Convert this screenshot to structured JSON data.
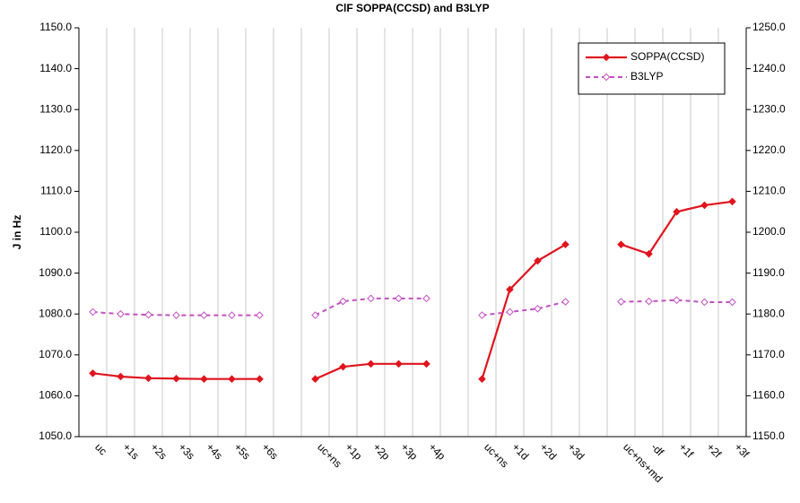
{
  "chart_data": {
    "type": "line",
    "title": "ClF SOPPA(CCSD) and B3LYP",
    "ylabel": "J in Hz",
    "categories": [
      "uc",
      "+1s",
      "+2s",
      "+3s",
      "+4s",
      "+5s",
      "+6s",
      null,
      "uc+ns",
      "+1p",
      "+2p",
      "+3p",
      "+4p",
      null,
      "uc+ns",
      "+1d",
      "+2d",
      "+3d",
      null,
      "uc+ns+md",
      "-df",
      "+1f",
      "+2f",
      "+3f"
    ],
    "series": [
      {
        "name": "SOPPA(CCSD)",
        "color": "#e0141e",
        "axis": "y",
        "values": [
          1065.5,
          1064.7,
          1064.3,
          1064.2,
          1064.1,
          1064.1,
          1064.1,
          null,
          1064.1,
          1067.1,
          1067.8,
          1067.8,
          1067.8,
          null,
          1064.1,
          1086.0,
          1093.0,
          1097.0,
          null,
          1097.0,
          1094.7,
          1105.0,
          1106.6,
          1107.5
        ]
      },
      {
        "name": "B3LYP",
        "color": "#c050c0",
        "axis": "y2",
        "values": [
          1180.5,
          1180.0,
          1179.8,
          1179.7,
          1179.7,
          1179.7,
          1179.7,
          null,
          1179.7,
          1183.1,
          1183.8,
          1183.8,
          1183.8,
          null,
          1179.7,
          1180.5,
          1181.3,
          1183.0,
          null,
          1183.0,
          1183.1,
          1183.4,
          1182.9,
          1182.9
        ]
      }
    ],
    "ylim": [
      1050,
      1150
    ],
    "yticks": [
      {
        "value": 1050,
        "label": "1050.0"
      },
      {
        "value": 1060,
        "label": "1060.0"
      },
      {
        "value": 1070,
        "label": "1070.0"
      },
      {
        "value": 1080,
        "label": "1080.0"
      },
      {
        "value": 1090,
        "label": "1090.0"
      },
      {
        "value": 1100,
        "label": "1100.0"
      },
      {
        "value": 1110,
        "label": "1110.0"
      },
      {
        "value": 1120,
        "label": "1120.0"
      },
      {
        "value": 1130,
        "label": "1130.0"
      },
      {
        "value": 1140,
        "label": "1140.0"
      },
      {
        "value": 1150,
        "label": "1150.0"
      }
    ],
    "y2lim": [
      1150,
      1250
    ],
    "y2ticks": [
      {
        "value": 1150,
        "label": "1150.0"
      },
      {
        "value": 1160,
        "label": "1160.0"
      },
      {
        "value": 1170,
        "label": "1170.0"
      },
      {
        "value": 1180,
        "label": "1180.0"
      },
      {
        "value": 1190,
        "label": "1190.0"
      },
      {
        "value": 1200,
        "label": "1200.0"
      },
      {
        "value": 1210,
        "label": "1210.0"
      },
      {
        "value": 1220,
        "label": "1220.0"
      },
      {
        "value": 1230,
        "label": "1230.0"
      },
      {
        "value": 1240,
        "label": "1240.0"
      },
      {
        "value": 1250,
        "label": "1250.0"
      }
    ],
    "xgrid": true,
    "legend": "upper right"
  }
}
